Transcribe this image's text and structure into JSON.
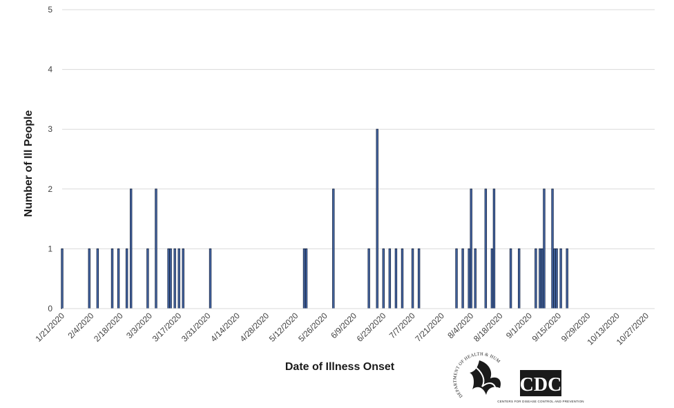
{
  "chart_data": {
    "type": "bar",
    "xlabel": "Date of Illness Onset",
    "ylabel": "Number of Ill People",
    "ylim": [
      0,
      5
    ],
    "yticks": [
      0,
      1,
      2,
      3,
      4,
      5
    ],
    "grid": true,
    "x_start": "1/21/2020",
    "x_end": "10/27/2020",
    "xtick_labels": [
      "1/21/2020",
      "2/4/2020",
      "2/18/2020",
      "3/3/2020",
      "3/17/2020",
      "3/31/2020",
      "4/14/2020",
      "4/28/2020",
      "5/12/2020",
      "5/26/2020",
      "6/9/2020",
      "6/23/2020",
      "7/7/2020",
      "7/21/2020",
      "8/4/2020",
      "8/18/2020",
      "9/1/2020",
      "9/15/2020",
      "9/29/2020",
      "10/13/2020",
      "10/27/2020"
    ],
    "bars": [
      {
        "date": "1/21/2020",
        "value": 1
      },
      {
        "date": "2/3/2020",
        "value": 1
      },
      {
        "date": "2/7/2020",
        "value": 1
      },
      {
        "date": "2/14/2020",
        "value": 1
      },
      {
        "date": "2/17/2020",
        "value": 1
      },
      {
        "date": "2/21/2020",
        "value": 1
      },
      {
        "date": "2/23/2020",
        "value": 2
      },
      {
        "date": "3/2/2020",
        "value": 1
      },
      {
        "date": "3/6/2020",
        "value": 2
      },
      {
        "date": "3/12/2020",
        "value": 1
      },
      {
        "date": "3/13/2020",
        "value": 1
      },
      {
        "date": "3/15/2020",
        "value": 1
      },
      {
        "date": "3/17/2020",
        "value": 1
      },
      {
        "date": "3/19/2020",
        "value": 1
      },
      {
        "date": "4/1/2020",
        "value": 1
      },
      {
        "date": "5/16/2020",
        "value": 1
      },
      {
        "date": "5/17/2020",
        "value": 1
      },
      {
        "date": "5/30/2020",
        "value": 2
      },
      {
        "date": "6/16/2020",
        "value": 1
      },
      {
        "date": "6/20/2020",
        "value": 3
      },
      {
        "date": "6/23/2020",
        "value": 1
      },
      {
        "date": "6/26/2020",
        "value": 1
      },
      {
        "date": "6/29/2020",
        "value": 1
      },
      {
        "date": "7/2/2020",
        "value": 1
      },
      {
        "date": "7/7/2020",
        "value": 1
      },
      {
        "date": "7/10/2020",
        "value": 1
      },
      {
        "date": "7/28/2020",
        "value": 1
      },
      {
        "date": "7/31/2020",
        "value": 1
      },
      {
        "date": "8/3/2020",
        "value": 1
      },
      {
        "date": "8/4/2020",
        "value": 2
      },
      {
        "date": "8/6/2020",
        "value": 1
      },
      {
        "date": "8/11/2020",
        "value": 2
      },
      {
        "date": "8/14/2020",
        "value": 1
      },
      {
        "date": "8/15/2020",
        "value": 2
      },
      {
        "date": "8/23/2020",
        "value": 1
      },
      {
        "date": "8/27/2020",
        "value": 1
      },
      {
        "date": "9/4/2020",
        "value": 1
      },
      {
        "date": "9/6/2020",
        "value": 1
      },
      {
        "date": "9/7/2020",
        "value": 1
      },
      {
        "date": "9/8/2020",
        "value": 2
      },
      {
        "date": "9/12/2020",
        "value": 2
      },
      {
        "date": "9/13/2020",
        "value": 1
      },
      {
        "date": "9/14/2020",
        "value": 1
      },
      {
        "date": "9/16/2020",
        "value": 1
      },
      {
        "date": "9/19/2020",
        "value": 1
      }
    ]
  },
  "logos": {
    "hhs": {
      "name": "hhs-logo",
      "text": "DEPARTMENT OF HEALTH & HUMAN SERVICES USA"
    },
    "cdc": {
      "name": "cdc-logo",
      "text": "CDC",
      "subtext": "CENTERS FOR DISEASE CONTROL AND PREVENTION"
    }
  },
  "colors": {
    "bar_fill": "#4f74b8",
    "bar_stroke": "#1b2a49",
    "gridline": "#d9d9d9",
    "cdc_bg": "#1a1a1a"
  }
}
